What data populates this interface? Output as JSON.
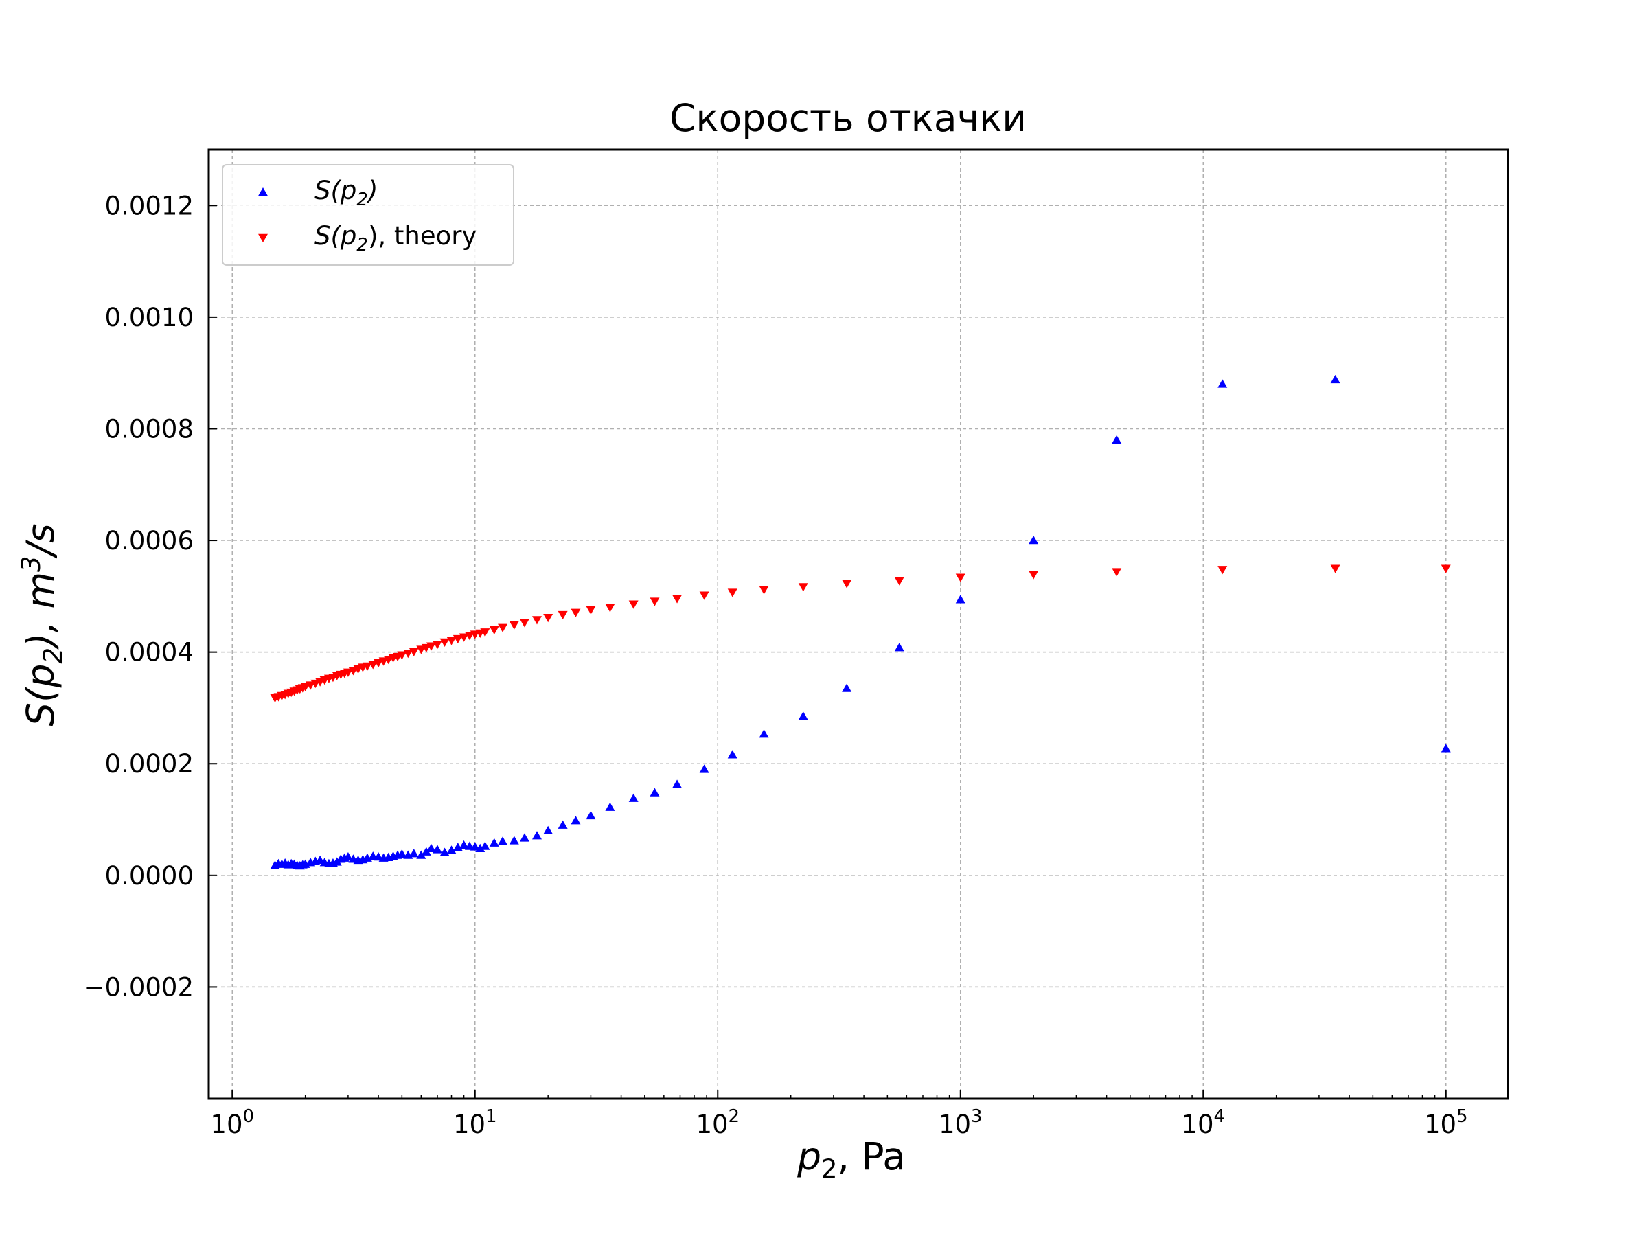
{
  "chart_data": {
    "type": "scatter",
    "title": "Скорость откачки",
    "xlabel": {
      "base": "p",
      "sub": "2",
      "rest": ", Pa"
    },
    "ylabel": {
      "pre": "S(p",
      "sub": "2",
      "mid": "), m",
      "sup": "3",
      "post": "/s"
    },
    "x_scale": "log",
    "xlim": [
      0.8,
      180000
    ],
    "ylim": [
      -0.0004,
      0.0013
    ],
    "grid": true,
    "legend_position": "top-left",
    "x_ticks": [
      {
        "value": 1,
        "base": "10",
        "exp": "0"
      },
      {
        "value": 10,
        "base": "10",
        "exp": "1"
      },
      {
        "value": 100,
        "base": "10",
        "exp": "2"
      },
      {
        "value": 1000,
        "base": "10",
        "exp": "3"
      },
      {
        "value": 10000,
        "base": "10",
        "exp": "4"
      },
      {
        "value": 100000,
        "base": "10",
        "exp": "5"
      }
    ],
    "y_ticks": [
      {
        "value": -0.0002,
        "label": "−0.0002"
      },
      {
        "value": 0.0,
        "label": "0.0000"
      },
      {
        "value": 0.0002,
        "label": "0.0002"
      },
      {
        "value": 0.0004,
        "label": "0.0004"
      },
      {
        "value": 0.0006,
        "label": "0.0006"
      },
      {
        "value": 0.0008,
        "label": "0.0008"
      },
      {
        "value": 0.001,
        "label": "0.0010"
      },
      {
        "value": 0.0012,
        "label": "0.0012"
      }
    ],
    "series": [
      {
        "legend": {
          "pre": "S(p",
          "sub": "2",
          "post": ")"
        },
        "color": "#0000ff",
        "marker": "triangle-up",
        "points": [
          [
            1.5,
            1.8e-05
          ],
          [
            1.55,
            2.1e-05
          ],
          [
            1.6,
            2e-05
          ],
          [
            1.65,
            2.2e-05
          ],
          [
            1.7,
            1.9e-05
          ],
          [
            1.75,
            2.1e-05
          ],
          [
            1.8,
            2e-05
          ],
          [
            1.85,
            1.8e-05
          ],
          [
            1.9,
            1.7e-05
          ],
          [
            1.95,
            1.9e-05
          ],
          [
            2.0,
            2e-05
          ],
          [
            2.1,
            2.3e-05
          ],
          [
            2.2,
            2.5e-05
          ],
          [
            2.3,
            2.7e-05
          ],
          [
            2.4,
            2.3e-05
          ],
          [
            2.5,
            2.1e-05
          ],
          [
            2.6,
            2.2e-05
          ],
          [
            2.7,
            2.4e-05
          ],
          [
            2.8,
            2.9e-05
          ],
          [
            2.9,
            3.1e-05
          ],
          [
            3.0,
            3.3e-05
          ],
          [
            3.15,
            2.9e-05
          ],
          [
            3.3,
            2.7e-05
          ],
          [
            3.45,
            2.8e-05
          ],
          [
            3.6,
            3.1e-05
          ],
          [
            3.8,
            3.4e-05
          ],
          [
            4.0,
            3.3e-05
          ],
          [
            4.2,
            3.1e-05
          ],
          [
            4.4,
            3.2e-05
          ],
          [
            4.6,
            3.4e-05
          ],
          [
            4.8,
            3.6e-05
          ],
          [
            5.0,
            3.8e-05
          ],
          [
            5.3,
            3.6e-05
          ],
          [
            5.6,
            3.9e-05
          ],
          [
            6.0,
            3.6e-05
          ],
          [
            6.3,
            4.2e-05
          ],
          [
            6.6,
            4.8e-05
          ],
          [
            7.0,
            4.6e-05
          ],
          [
            7.5,
            4.1e-05
          ],
          [
            8.0,
            4.5e-05
          ],
          [
            8.5,
            5e-05
          ],
          [
            9.0,
            5.4e-05
          ],
          [
            9.5,
            5.2e-05
          ],
          [
            10.0,
            5.1e-05
          ],
          [
            10.5,
            4.8e-05
          ],
          [
            11.0,
            5.2e-05
          ],
          [
            12.0,
            5.8e-05
          ],
          [
            13.0,
            6.1e-05
          ],
          [
            14.5,
            6.2e-05
          ],
          [
            16.0,
            6.7e-05
          ],
          [
            18.0,
            7.1e-05
          ],
          [
            20.0,
            8e-05
          ],
          [
            23.0,
            9e-05
          ],
          [
            26.0,
            9.8e-05
          ],
          [
            30.0,
            0.000107
          ],
          [
            36.0,
            0.000122
          ],
          [
            45.0,
            0.000138
          ],
          [
            55.0,
            0.000148
          ],
          [
            68.0,
            0.000163
          ],
          [
            88.0,
            0.00019
          ],
          [
            115.0,
            0.000216
          ],
          [
            155.0,
            0.000253
          ],
          [
            225.0,
            0.000285
          ],
          [
            340.0,
            0.000335
          ],
          [
            560.0,
            0.000408
          ],
          [
            1000.0,
            0.000494
          ],
          [
            2000.0,
            0.0006
          ],
          [
            4400.0,
            0.00078
          ],
          [
            12000.0,
            0.00088
          ],
          [
            35000.0,
            0.000888
          ],
          [
            100000.0,
            0.000227
          ]
        ]
      },
      {
        "legend": {
          "pre": "S(p",
          "sub": "2",
          "post": "), theory"
        },
        "color": "#ff0000",
        "marker": "triangle-down",
        "points": [
          [
            1.5,
            0.000318
          ],
          [
            1.55,
            0.00032
          ],
          [
            1.6,
            0.000322
          ],
          [
            1.65,
            0.000324
          ],
          [
            1.7,
            0.000326
          ],
          [
            1.75,
            0.000328
          ],
          [
            1.8,
            0.00033
          ],
          [
            1.85,
            0.000332
          ],
          [
            1.9,
            0.000334
          ],
          [
            1.95,
            0.000336
          ],
          [
            2.0,
            0.000338
          ],
          [
            2.1,
            0.000341
          ],
          [
            2.2,
            0.000344
          ],
          [
            2.3,
            0.000347
          ],
          [
            2.4,
            0.00035
          ],
          [
            2.5,
            0.000353
          ],
          [
            2.6,
            0.000355
          ],
          [
            2.7,
            0.000358
          ],
          [
            2.8,
            0.00036
          ],
          [
            2.9,
            0.000362
          ],
          [
            3.0,
            0.000364
          ],
          [
            3.15,
            0.000367
          ],
          [
            3.3,
            0.00037
          ],
          [
            3.45,
            0.000373
          ],
          [
            3.6,
            0.000375
          ],
          [
            3.8,
            0.000378
          ],
          [
            4.0,
            0.000381
          ],
          [
            4.2,
            0.000384
          ],
          [
            4.4,
            0.000387
          ],
          [
            4.6,
            0.00039
          ],
          [
            4.8,
            0.000392
          ],
          [
            5.0,
            0.000395
          ],
          [
            5.3,
            0.000398
          ],
          [
            5.6,
            0.000401
          ],
          [
            6.0,
            0.000405
          ],
          [
            6.3,
            0.000408
          ],
          [
            6.6,
            0.000411
          ],
          [
            7.0,
            0.000414
          ],
          [
            7.5,
            0.000418
          ],
          [
            8.0,
            0.000421
          ],
          [
            8.5,
            0.000424
          ],
          [
            9.0,
            0.000427
          ],
          [
            9.5,
            0.00043
          ],
          [
            10.0,
            0.000432
          ],
          [
            10.5,
            0.000434
          ],
          [
            11.0,
            0.000436
          ],
          [
            12.0,
            0.00044
          ],
          [
            13.0,
            0.000444
          ],
          [
            14.5,
            0.000449
          ],
          [
            16.0,
            0.000453
          ],
          [
            18.0,
            0.000458
          ],
          [
            20.0,
            0.000462
          ],
          [
            23.0,
            0.000467
          ],
          [
            26.0,
            0.000471
          ],
          [
            30.0,
            0.000476
          ],
          [
            36.0,
            0.00048
          ],
          [
            45.0,
            0.000486
          ],
          [
            55.0,
            0.000491
          ],
          [
            68.0,
            0.000496
          ],
          [
            88.0,
            0.000502
          ],
          [
            115.0,
            0.000507
          ],
          [
            155.0,
            0.000512
          ],
          [
            225.0,
            0.000517
          ],
          [
            340.0,
            0.000523
          ],
          [
            560.0,
            0.000528
          ],
          [
            1000.0,
            0.000534
          ],
          [
            2000.0,
            0.000539
          ],
          [
            4400.0,
            0.000544
          ],
          [
            12000.0,
            0.000548
          ],
          [
            35000.0,
            0.00055
          ],
          [
            100000.0,
            0.00055
          ]
        ]
      }
    ]
  }
}
